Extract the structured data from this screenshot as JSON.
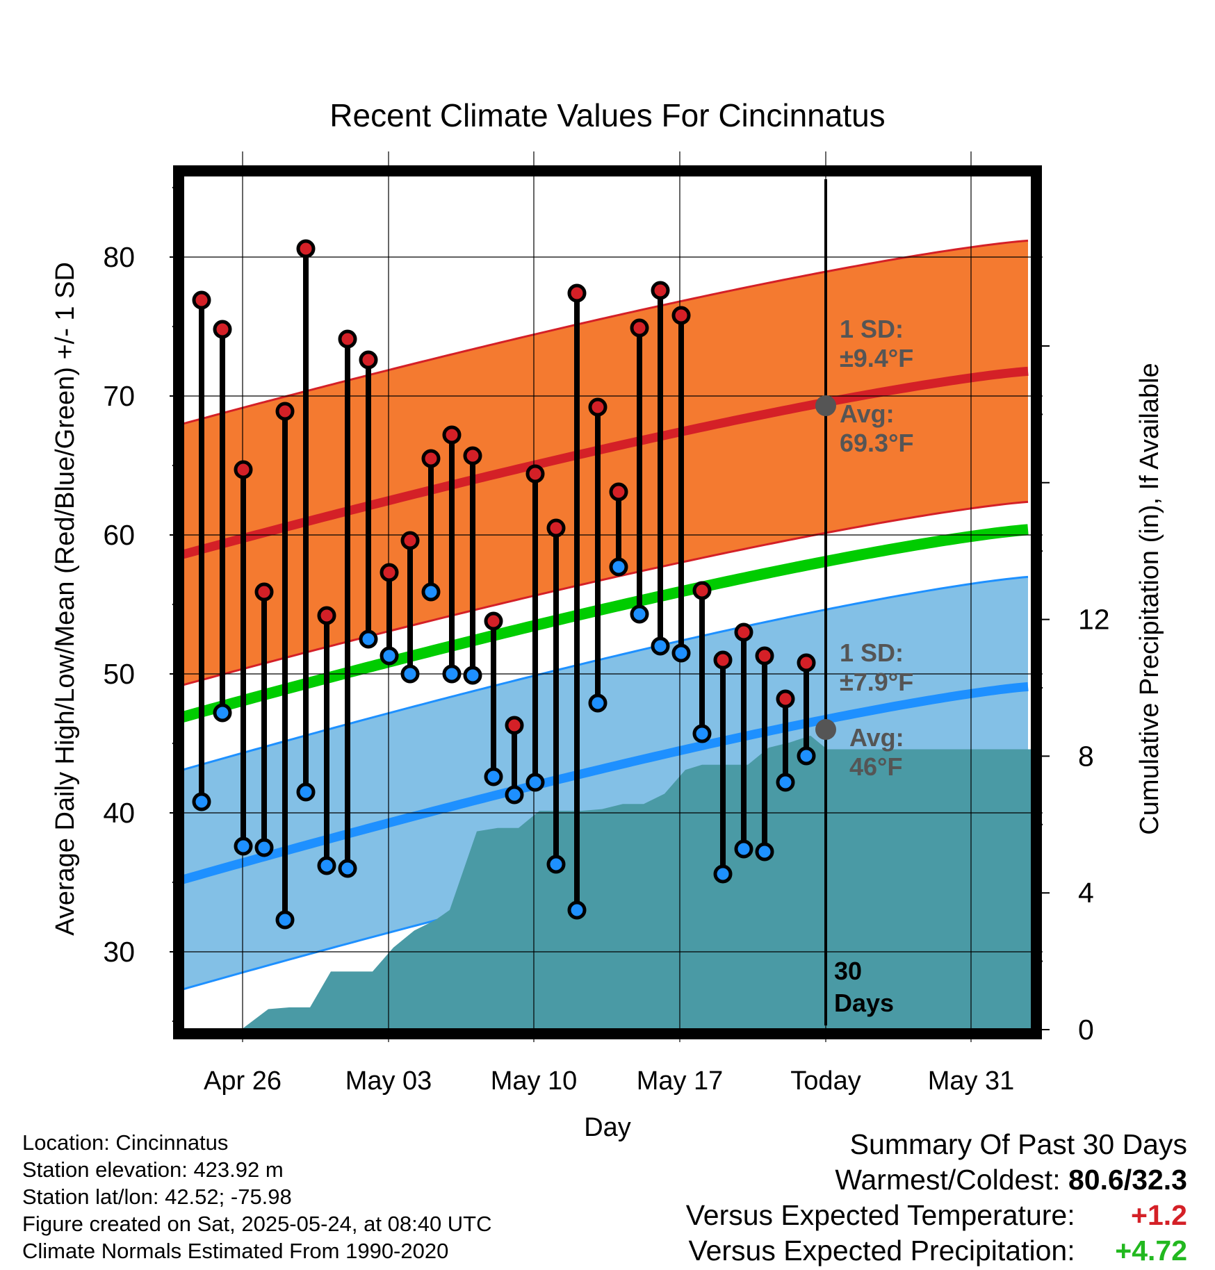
{
  "chart_data": {
    "type": "line",
    "title": "Recent Climate Values For Cincinnatus",
    "xlabel": "Day",
    "ylabel_left": "Average Daily High/Low/Mean (Red/Blue/Green) +/- 1 SD",
    "ylabel_right": "Cumulative Precipitation (in), If Available",
    "ylim_left": [
      24,
      86
    ],
    "ylim_right": [
      0,
      24
    ],
    "xlim": [
      "Apr 22",
      "Jun 02"
    ],
    "x_tick_labels": [
      "Apr 26",
      "May 03",
      "May 10",
      "May 17",
      "Today",
      "May 31"
    ],
    "y_ticks_left": [
      30,
      40,
      50,
      60,
      70,
      80
    ],
    "y_ticks_right": [
      0,
      4,
      8,
      12
    ],
    "grid": true,
    "today_label": "Today",
    "window_label": [
      "30",
      "Days"
    ],
    "dates": [
      "Apr 24",
      "Apr 25",
      "Apr 26",
      "Apr 27",
      "Apr 28",
      "Apr 29",
      "Apr 30",
      "May 01",
      "May 02",
      "May 03",
      "May 04",
      "May 05",
      "May 06",
      "May 07",
      "May 08",
      "May 09",
      "May 10",
      "May 11",
      "May 12",
      "May 13",
      "May 14",
      "May 15",
      "May 16",
      "May 17",
      "May 18",
      "May 19",
      "May 20",
      "May 21",
      "May 22",
      "May 23"
    ],
    "series": [
      {
        "name": "High",
        "color": "#d42027",
        "values": [
          76.9,
          74.8,
          64.7,
          55.9,
          68.9,
          80.6,
          54.2,
          74.1,
          72.6,
          57.3,
          59.6,
          65.5,
          67.2,
          65.7,
          53.8,
          46.3,
          64.4,
          60.5,
          77.4,
          69.2,
          63.1,
          74.9,
          77.6,
          75.8,
          56.0,
          51.0,
          53.0,
          51.3,
          48.2,
          50.8
        ]
      },
      {
        "name": "Low",
        "color": "#1e90ff",
        "values": [
          40.8,
          47.2,
          37.6,
          37.5,
          32.3,
          41.5,
          36.2,
          36.0,
          52.5,
          51.3,
          50.0,
          55.9,
          50.0,
          49.9,
          42.6,
          41.3,
          42.2,
          36.3,
          33.0,
          47.9,
          57.7,
          54.3,
          52.0,
          51.5,
          45.7,
          35.6,
          37.4,
          37.2,
          42.2,
          44.1
        ]
      }
    ],
    "normals": {
      "high_avg_start": 58.6,
      "high_avg_end": 71.8,
      "low_avg_start": 35.2,
      "low_avg_end": 49.1,
      "mean_avg_start": 46.9,
      "mean_avg_end": 60.4,
      "high_sd": 9.4,
      "low_sd": 7.9,
      "high_color": "#f47a30",
      "high_line_color": "#d42027",
      "low_color": "#83c0e6",
      "low_line_color": "#1e90ff",
      "mean_color": "#00cc00"
    },
    "precip_color": "#4a9aa5",
    "precip_x_days": [
      0,
      1.2,
      1.9,
      3.2,
      4.2,
      5.2,
      6.2,
      7.3,
      8.2,
      9.2,
      10.2,
      11.2,
      11.9,
      13.2,
      14.2,
      15.2,
      16.2,
      17.2,
      18.2,
      19.2,
      20.2,
      21.2,
      22.2,
      23.2,
      24.0,
      24.2,
      25.2,
      26.2,
      27.2,
      28.2,
      29.2,
      30.0,
      31.0,
      32.0,
      40.5
    ],
    "precip_values": [
      0,
      0,
      0,
      0.6,
      0.65,
      0.65,
      1.7,
      1.7,
      1.7,
      2.4,
      2.9,
      3.2,
      3.5,
      5.8,
      5.9,
      5.9,
      6.4,
      6.4,
      6.4,
      6.45,
      6.6,
      6.6,
      6.9,
      7.6,
      7.75,
      7.75,
      7.75,
      7.75,
      8.25,
      8.4,
      8.6,
      8.2,
      8.2,
      8.2,
      8.2
    ],
    "annotations": {
      "high_sd_label": [
        "1 SD:",
        "±9.4°F"
      ],
      "high_avg_label": [
        "Avg:",
        "69.3°F"
      ],
      "low_sd_label": [
        "1 SD:",
        "±7.9°F"
      ],
      "low_avg_label": [
        "Avg:",
        "46°F"
      ],
      "today_high_avg": 69.3,
      "today_low_avg": 46.0
    }
  },
  "meta": {
    "location": "Location: Cincinnatus",
    "elevation": "Station elevation: 423.92 m",
    "latlon": "Station lat/lon: 42.52; -75.98",
    "created": "Figure created on Sat, 2025-05-24, at 08:40 UTC",
    "normals": "Climate Normals Estimated From 1990-2020"
  },
  "summary": {
    "title": "Summary Of Past 30 Days",
    "warm_cold_label": "Warmest/Coldest:",
    "warm_cold_value": "80.6/32.3",
    "temp_label": "Versus Expected Temperature:",
    "temp_value": "+1.2",
    "precip_label": "Versus Expected Precipitation:",
    "precip_value": "+4.72"
  }
}
